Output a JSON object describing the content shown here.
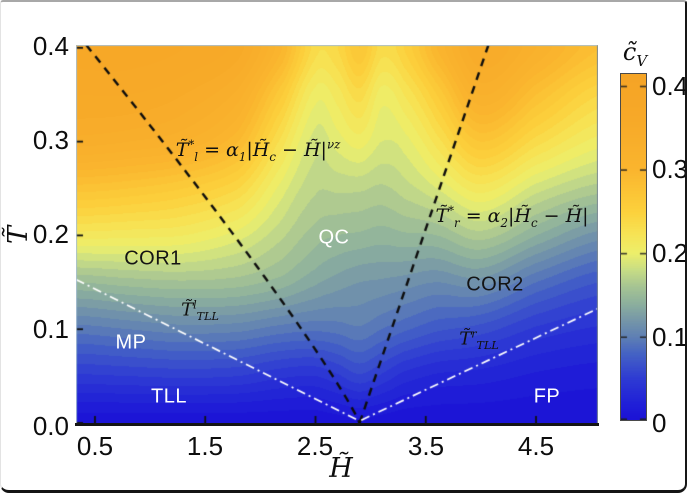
{
  "figure": {
    "description": "Phase diagram heatmap of specific heat versus magnetic field and temperature"
  },
  "ui": {
    "y_tick_labels": [
      "0.4",
      "0.3",
      "0.2",
      "0.1",
      "0.0"
    ],
    "x_tick_labels": [
      "0.5",
      "1.5",
      "2.5",
      "3.5",
      "4.5"
    ],
    "cbar_tick_labels": [
      "0.4",
      "0.3",
      "0.2",
      "0.1",
      "0"
    ],
    "phase_labels": {
      "cor1": "COR1",
      "qc": "QC",
      "cor2": "COR2",
      "mp": "MP",
      "tll": "TLL",
      "fp": "FP"
    },
    "math": {
      "eq_left": [
        [
          "T̃"
        ],
        [
          "*",
          "sup"
        ],
        [
          "l",
          "sub"
        ],
        [
          " = α"
        ],
        [
          "1",
          "sub"
        ],
        [
          "|H̃"
        ],
        [
          "c",
          "sub"
        ],
        [
          " − H̃|"
        ],
        [
          "νz",
          "sup"
        ]
      ],
      "eq_right": [
        [
          "T̃"
        ],
        [
          "*",
          "sup"
        ],
        [
          "r",
          "sub"
        ],
        [
          " = α"
        ],
        [
          "2",
          "sub"
        ],
        [
          "|H̃"
        ],
        [
          "c",
          "sub"
        ],
        [
          " − H̃|"
        ]
      ],
      "ttll_left": [
        [
          "T̃"
        ],
        [
          "l",
          "sup"
        ],
        [
          "TLL",
          "sub"
        ]
      ],
      "ttll_right": [
        [
          "T̃"
        ],
        [
          "r",
          "sup"
        ],
        [
          "TLL",
          "sub"
        ]
      ],
      "xlabel": [
        [
          "H̃"
        ]
      ],
      "ylabel": [
        [
          "T̃"
        ]
      ],
      "cbar_label": [
        [
          "c̃"
        ],
        [
          "V",
          "sub"
        ]
      ]
    }
  },
  "chart_data": {
    "type": "heatmap",
    "title": "",
    "xlabel": "H̃",
    "ylabel": "T̃",
    "colorbar_label": "c̃_V",
    "x_range": [
      0.328,
      5.062
    ],
    "y_range": [
      0.0,
      0.403
    ],
    "x_ticks": [
      0.5,
      1.5,
      2.5,
      3.5,
      4.5
    ],
    "y_ticks": [
      0.0,
      0.1,
      0.2,
      0.3,
      0.4
    ],
    "colorbar_ticks": [
      0,
      0.1,
      0.2,
      0.3,
      0.4
    ],
    "colorbar_range": [
      0,
      0.414
    ],
    "band_step": 0.01,
    "critical_field": 2.9,
    "grid_H": [
      0.35,
      0.8,
      1.3,
      1.8,
      2.2,
      2.5,
      2.7,
      2.9,
      3.1,
      3.3,
      3.6,
      4.0,
      4.5,
      5.08
    ],
    "grid_T": [
      0.4,
      0.35,
      0.3,
      0.25,
      0.2,
      0.15,
      0.1,
      0.05,
      0.0
    ],
    "values": [
      [
        0.375,
        0.375,
        0.37,
        0.355,
        0.3,
        0.235,
        0.24,
        0.27,
        0.235,
        0.25,
        0.3,
        0.35,
        0.32,
        0.28
      ],
      [
        0.36,
        0.36,
        0.35,
        0.325,
        0.26,
        0.205,
        0.215,
        0.235,
        0.205,
        0.22,
        0.26,
        0.32,
        0.28,
        0.24
      ],
      [
        0.335,
        0.33,
        0.32,
        0.29,
        0.225,
        0.185,
        0.195,
        0.205,
        0.19,
        0.195,
        0.225,
        0.27,
        0.235,
        0.205
      ],
      [
        0.275,
        0.27,
        0.26,
        0.24,
        0.195,
        0.172,
        0.172,
        0.172,
        0.168,
        0.175,
        0.19,
        0.215,
        0.185,
        0.165
      ],
      [
        0.215,
        0.213,
        0.21,
        0.195,
        0.172,
        0.155,
        0.15,
        0.148,
        0.145,
        0.148,
        0.15,
        0.165,
        0.14,
        0.115
      ],
      [
        0.15,
        0.155,
        0.158,
        0.155,
        0.145,
        0.132,
        0.125,
        0.12,
        0.118,
        0.115,
        0.11,
        0.115,
        0.09,
        0.07
      ],
      [
        0.095,
        0.1,
        0.105,
        0.103,
        0.095,
        0.092,
        0.094,
        0.098,
        0.09,
        0.082,
        0.072,
        0.065,
        0.048,
        0.038
      ],
      [
        0.048,
        0.05,
        0.052,
        0.05,
        0.042,
        0.04,
        0.048,
        0.058,
        0.048,
        0.036,
        0.028,
        0.025,
        0.018,
        0.014
      ],
      [
        0.003,
        0.003,
        0.003,
        0.003,
        0.003,
        0.003,
        0.005,
        0.007,
        0.005,
        0.003,
        0.003,
        0.003,
        0.003,
        0.003
      ]
    ],
    "colormap": [
      [
        0.0,
        "#1b11d6"
      ],
      [
        0.02,
        "#2020d7"
      ],
      [
        0.05,
        "#2e3bd3"
      ],
      [
        0.08,
        "#4563c4"
      ],
      [
        0.1,
        "#5f80b4"
      ],
      [
        0.12,
        "#7697a8"
      ],
      [
        0.14,
        "#8db09d"
      ],
      [
        0.16,
        "#a6c493"
      ],
      [
        0.18,
        "#c8dd85"
      ],
      [
        0.2,
        "#edef6b"
      ],
      [
        0.225,
        "#f7e253"
      ],
      [
        0.25,
        "#fcd13c"
      ],
      [
        0.3,
        "#fab52e"
      ],
      [
        0.36,
        "#f7a928"
      ],
      [
        0.42,
        "#f5a325"
      ]
    ],
    "crossover_lines": [
      {
        "name": "T_l_star",
        "style": "dashed",
        "color": "#0d0d0d",
        "type": "power",
        "alpha": 0.178,
        "exponent": 0.9,
        "side": "left"
      },
      {
        "name": "T_r_star",
        "style": "dashed",
        "color": "#0d0d0d",
        "type": "linear",
        "alpha": 0.345,
        "side": "right"
      },
      {
        "name": "T_TLL_left",
        "style": "dashdot",
        "color": "#ffffff",
        "points": [
          [
            0.328,
            0.153
          ],
          [
            2.885,
            0.003
          ]
        ]
      },
      {
        "name": "T_TLL_right",
        "style": "dashdot",
        "color": "#ffffff",
        "points": [
          [
            2.915,
            0.003
          ],
          [
            5.062,
            0.122
          ]
        ]
      }
    ]
  }
}
